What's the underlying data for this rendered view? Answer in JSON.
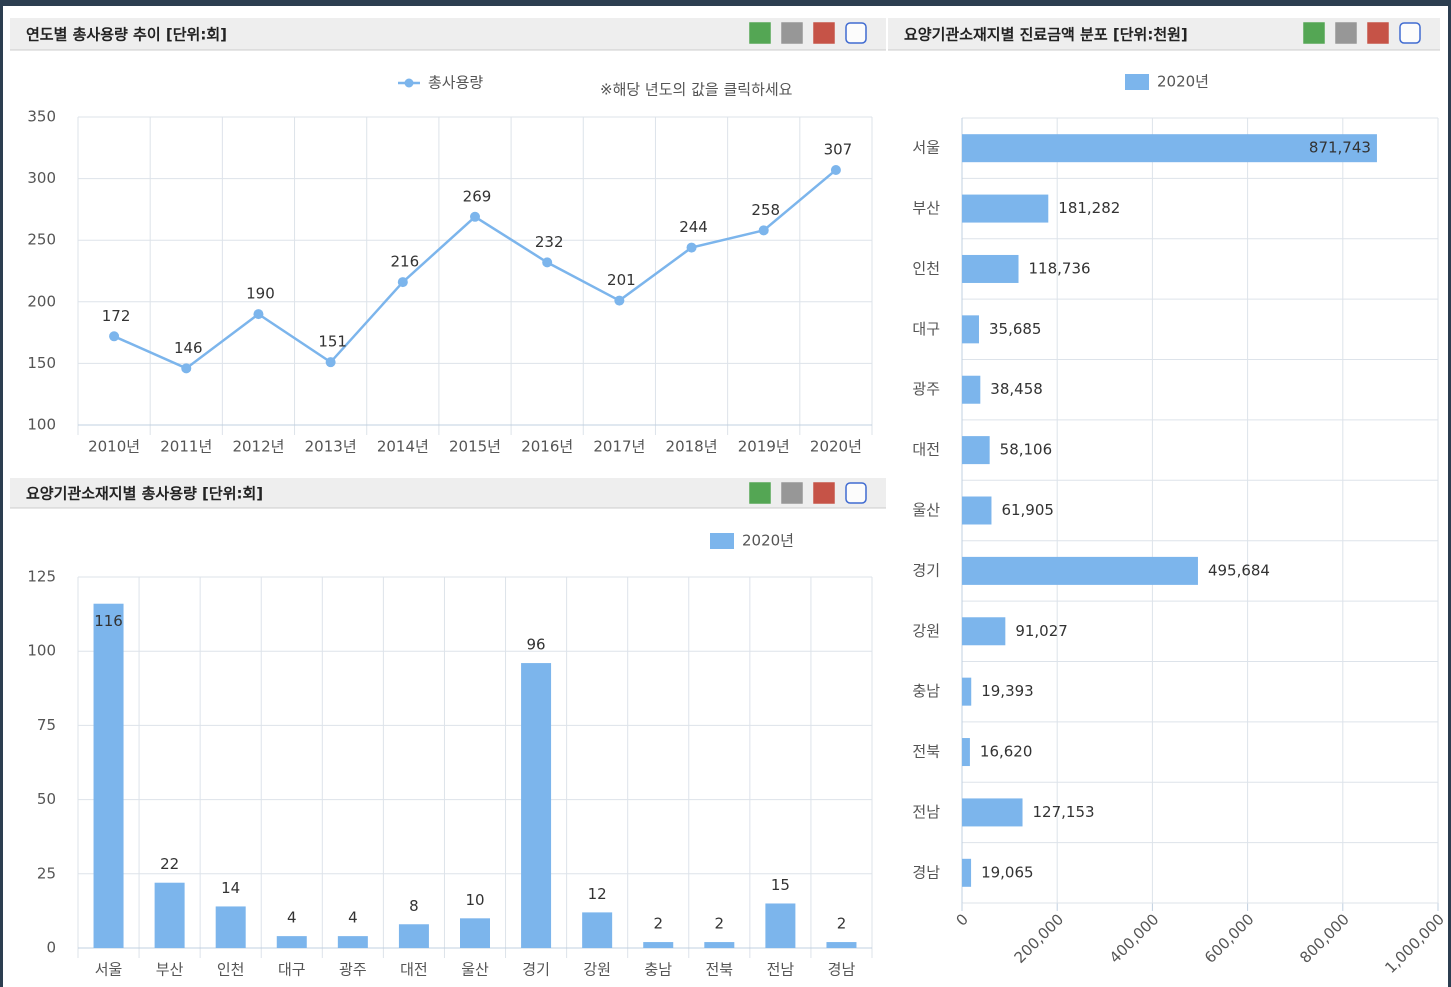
{
  "chart_data": [
    {
      "type": "line",
      "title": "연도별 총사용량 추이 [단위:회]",
      "annotation": "※해당 년도의 값을 클릭하세요",
      "categories": [
        "2010년",
        "2011년",
        "2012년",
        "2013년",
        "2014년",
        "2015년",
        "2016년",
        "2017년",
        "2018년",
        "2019년",
        "2020년"
      ],
      "series": [
        {
          "name": "총사용량",
          "color": "#7cb5ec",
          "values": [
            172,
            146,
            190,
            151,
            216,
            269,
            232,
            201,
            244,
            258,
            307
          ]
        }
      ],
      "ylim": [
        100,
        350
      ],
      "yticks": [
        100,
        150,
        200,
        250,
        300,
        350
      ],
      "grid": true,
      "legend": "top"
    },
    {
      "type": "bar",
      "title": "요양기관소재지별 총사용량 [단위:회]",
      "categories": [
        "서울",
        "부산",
        "인천",
        "대구",
        "광주",
        "대전",
        "울산",
        "경기",
        "강원",
        "충남",
        "전북",
        "전남",
        "경남"
      ],
      "series": [
        {
          "name": "2020년",
          "color": "#7cb5ec",
          "values": [
            116,
            22,
            14,
            4,
            4,
            8,
            10,
            96,
            12,
            2,
            2,
            15,
            2
          ]
        }
      ],
      "ylim": [
        0,
        125
      ],
      "yticks": [
        0,
        25,
        50,
        75,
        100,
        125
      ],
      "grid": true,
      "legend": "top-right"
    },
    {
      "type": "bar",
      "orientation": "horizontal",
      "title": "요양기관소재지별 진료금액 분포 [단위:천원]",
      "categories": [
        "서울",
        "부산",
        "인천",
        "대구",
        "광주",
        "대전",
        "울산",
        "경기",
        "강원",
        "충남",
        "전북",
        "전남",
        "경남"
      ],
      "series": [
        {
          "name": "2020년",
          "color": "#7cb5ec",
          "values": [
            871743,
            181282,
            118736,
            35685,
            38458,
            58106,
            61905,
            495684,
            91027,
            19393,
            16620,
            127153,
            19065
          ],
          "value_labels": [
            "871,743",
            "181,282",
            "118,736",
            "35,685",
            "38,458",
            "58,106",
            "61,905",
            "495,684",
            "91,027",
            "19,393",
            "16,620",
            "127,153",
            "19,065"
          ]
        }
      ],
      "xlim": [
        0,
        1000000
      ],
      "xticks": [
        0,
        {
          "value": 200000,
          "label": "200,000"
        },
        {
          "value": 400000,
          "label": "400,000"
        },
        {
          "value": 600000,
          "label": "600,000"
        },
        {
          "value": 800000,
          "label": "800,000"
        },
        {
          "value": 1000000,
          "label": "1,000,000"
        }
      ],
      "grid": true,
      "legend": "top"
    }
  ]
}
